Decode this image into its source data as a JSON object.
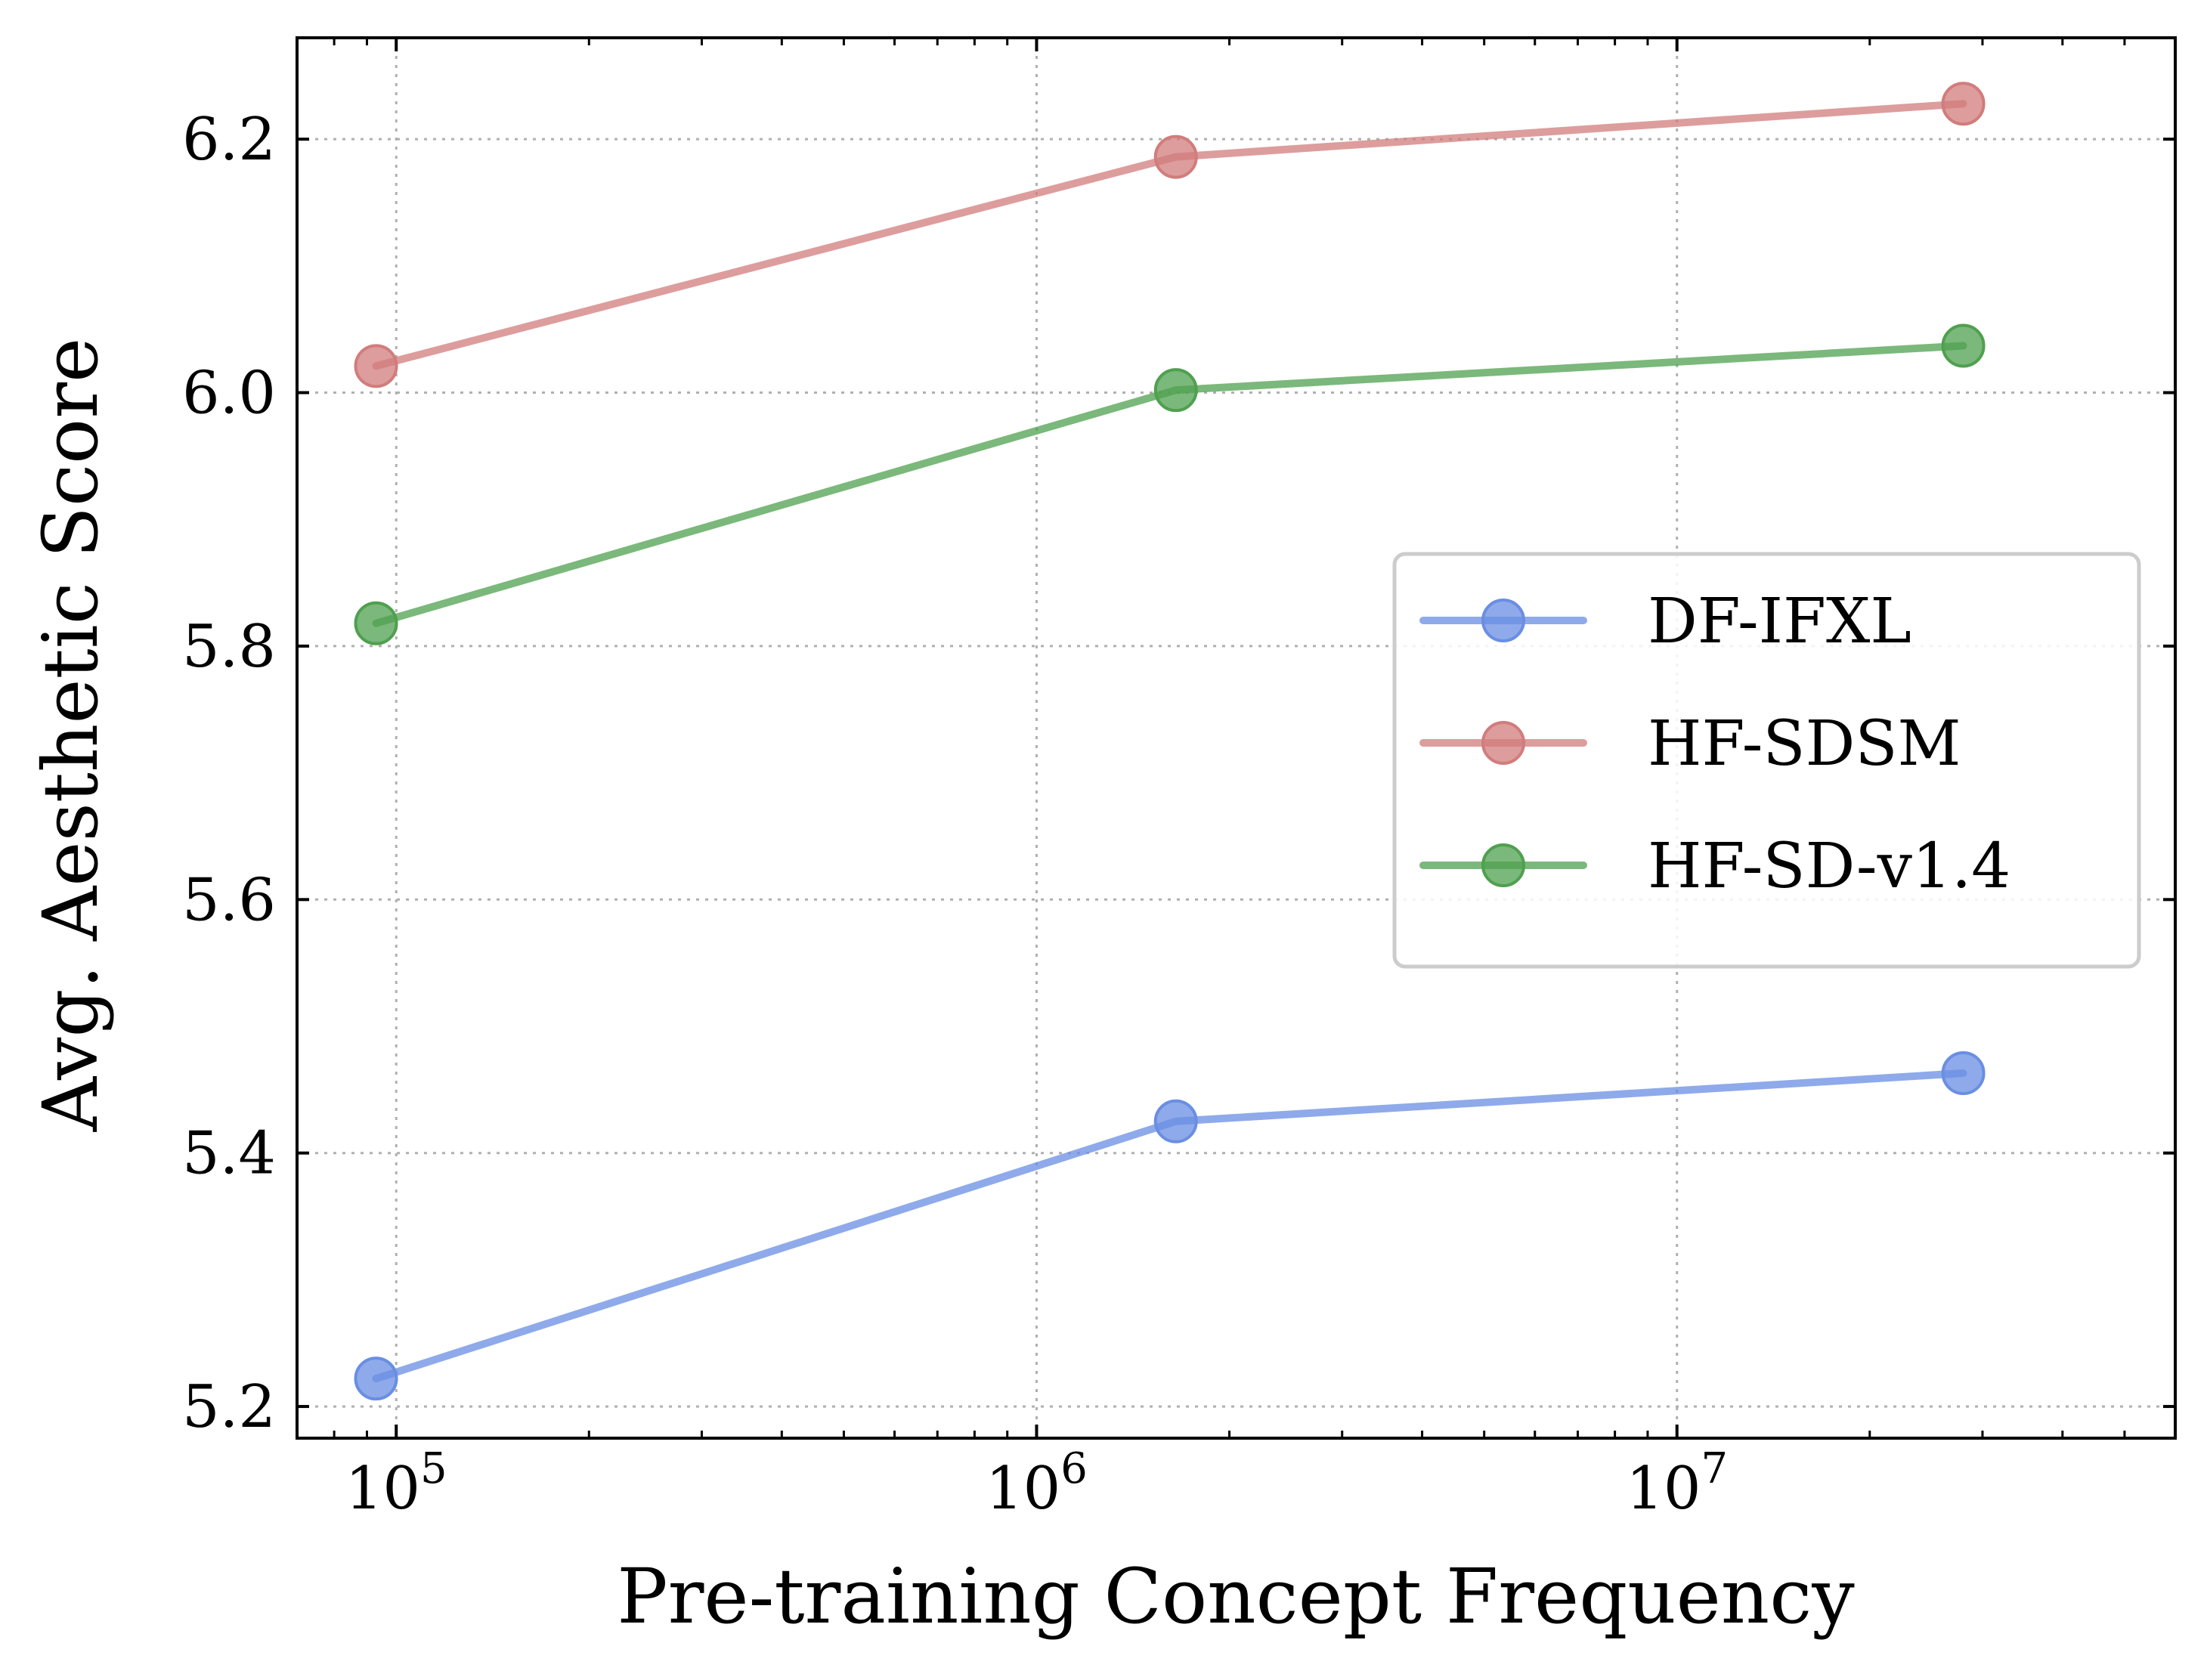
{
  "chart_data": {
    "type": "line",
    "xlabel": "Pre-training Concept Frequency",
    "ylabel": "Avg. Aesthetic Score",
    "x_scale": "log",
    "xlim": [
      70000,
      60000000
    ],
    "ylim": [
      5.175,
      6.28
    ],
    "x": [
      93000,
      1650000,
      28000000
    ],
    "xticks": [
      {
        "value": 100000,
        "base": "10",
        "exp": "5"
      },
      {
        "value": 1000000,
        "base": "10",
        "exp": "6"
      },
      {
        "value": 10000000,
        "base": "10",
        "exp": "7"
      }
    ],
    "yticks": [
      {
        "value": 5.2,
        "label": "5.2"
      },
      {
        "value": 5.4,
        "label": "5.4"
      },
      {
        "value": 5.6,
        "label": "5.6"
      },
      {
        "value": 5.8,
        "label": "5.8"
      },
      {
        "value": 6.0,
        "label": "6.0"
      },
      {
        "value": 6.2,
        "label": "6.2"
      }
    ],
    "grid": true,
    "legend_position": "center-right",
    "series": [
      {
        "name": "DF-IFXL",
        "color": "#6a8ee3",
        "values": [
          5.222,
          5.425,
          5.463
        ]
      },
      {
        "name": "HF-SDSM",
        "color": "#d27c7c",
        "values": [
          6.021,
          6.186,
          6.228
        ]
      },
      {
        "name": "HF-SD-v1.4",
        "color": "#4fa04f",
        "values": [
          5.818,
          6.002,
          6.037
        ]
      }
    ]
  }
}
